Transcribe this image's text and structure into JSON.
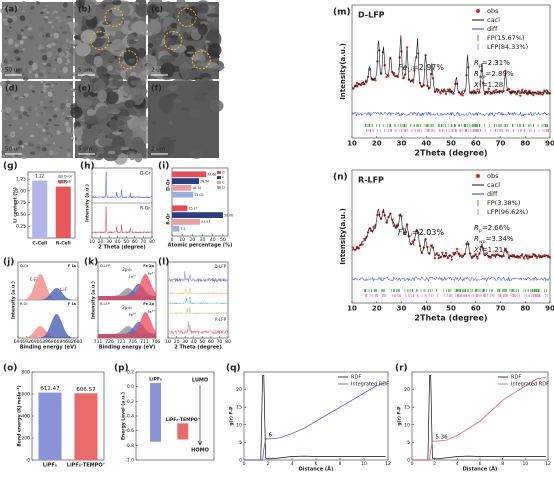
{
  "sem": [
    {
      "label": "(a)",
      "scale": "50 um"
    },
    {
      "label": "(b)",
      "scale": "5 um"
    },
    {
      "label": "(c)",
      "scale": "2 um"
    },
    {
      "label": "(d)",
      "scale": "50 um"
    },
    {
      "label": "(e)",
      "scale": "5 um"
    },
    {
      "label": "(f)",
      "scale": "2 um"
    }
  ],
  "chart_data": [
    {
      "type": "line",
      "panel": "(m)",
      "sample": "D-LFP",
      "xlabel": "2Theta (degree)",
      "ylabel": "Intensity(a.u.)",
      "xlim": [
        10,
        90
      ],
      "xticks": [
        10,
        20,
        30,
        40,
        50,
        60,
        70,
        80,
        90
      ],
      "series": [
        {
          "name": "obs",
          "color": "#d62728"
        },
        {
          "name": "cacl",
          "color": "#111111"
        },
        {
          "name": "diff",
          "color": "#1f3fd6"
        },
        {
          "name": "FP(15.67%)",
          "color": "#2ca02c"
        },
        {
          "name": "LFP(84.33%)",
          "color": "#e377c2"
        }
      ],
      "fe": {
        "main": "Fe",
        "sub": "Li",
        "rest": "=2.97%"
      },
      "stats": [
        {
          "main": "R",
          "sub": "p",
          "rest": "=2.31%"
        },
        {
          "main": "R",
          "sub": "wp",
          "rest": "=2.89%"
        },
        {
          "main": "X",
          "sup": "2",
          "rest": "=1.28"
        }
      ]
    },
    {
      "type": "line",
      "panel": "(n)",
      "sample": "R-LFP",
      "xlabel": "2Theta (degree)",
      "ylabel": "Intensity(a.u.)",
      "xlim": [
        10,
        90
      ],
      "xticks": [
        10,
        20,
        30,
        40,
        50,
        60,
        70,
        80,
        90
      ],
      "series": [
        {
          "name": "obs",
          "color": "#d62728"
        },
        {
          "name": "cacl",
          "color": "#111111"
        },
        {
          "name": "diff",
          "color": "#1f3fd6"
        },
        {
          "name": "FP(3.38%)",
          "color": "#2ca02c"
        },
        {
          "name": "LFP(96.62%)",
          "color": "#e377c2"
        }
      ],
      "fe": {
        "main": "Fe",
        "sub": "Li",
        "rest": "=2.03%"
      },
      "stats": [
        {
          "main": "R",
          "sub": "p",
          "rest": "=2.66%"
        },
        {
          "main": "R",
          "sub": "wp",
          "rest": "=3.34%"
        },
        {
          "main": "X",
          "sup": "2",
          "rest": "=1.21"
        }
      ]
    },
    {
      "type": "bar",
      "panel": "(g)",
      "ylabel": "Li content (%)",
      "categories": [
        "C-Cell",
        "R-Cell"
      ],
      "values": [
        1.22,
        1.09
      ],
      "colors": [
        "#b3b5e6",
        "#e8585a"
      ],
      "legend": [
        {
          "name": "D-Gr",
          "color": "#b3b5e6"
        },
        {
          "name": "R-Gr",
          "color": "#e8585a"
        }
      ],
      "ylim": [
        0,
        1.4
      ],
      "yticks": [
        {
          "value": 0.25,
          "label": "0.25"
        },
        {
          "value": 0.5,
          "label": "0.50"
        },
        {
          "value": 0.75,
          "label": "0.75"
        },
        {
          "value": 1,
          "label": "1.00"
        },
        {
          "value": 1.25,
          "label": "1.25"
        }
      ]
    },
    {
      "type": "line",
      "panel": "(h)",
      "xlabel": "2 Theta (degree)",
      "ylabel": "Intensity (a.u.)",
      "xlim": [
        10,
        80
      ],
      "xticks": [
        10,
        20,
        30,
        40,
        50,
        60,
        70,
        80
      ],
      "series": [
        {
          "name": "D-Gr",
          "color": "#3a53c9"
        },
        {
          "name": "R-Gr",
          "color": "#d9333f"
        }
      ]
    },
    {
      "type": "barh",
      "panel": "(i)",
      "xlabel": "Atomic percentage (%)",
      "categories": [
        "D-Gr",
        "R-Gr"
      ],
      "xlim": [
        0,
        55
      ],
      "xticks": [
        0,
        10,
        20,
        30,
        40,
        50
      ],
      "series": [
        {
          "name": "O",
          "color": "#e0505a",
          "values": [
            33.68,
            15.17
          ]
        },
        {
          "name": "F",
          "color": "#2c3e80",
          "values": [
            26.54,
            50.06
          ]
        },
        {
          "name": "C",
          "color": "#e8a0a8",
          "values": [
            18.74,
            27.57
          ]
        },
        {
          "name": "Li",
          "color": "#9ab0d8",
          "values": [
            21.03,
            7.2
          ]
        }
      ]
    },
    {
      "type": "line",
      "panel": "(j)",
      "xlabel": "Binding energy (eV)",
      "ylabel": "Intensity (a.u.)",
      "xlim": [
        694,
        680
      ],
      "xticks": [
        694,
        692,
        690,
        688,
        686,
        684,
        682,
        680
      ],
      "title": "F 1s",
      "peaks": [
        "C-F",
        "Li-F"
      ],
      "series": [
        {
          "name": "D-Gr",
          "color": "#f08a8a"
        },
        {
          "name": "R-Gr",
          "color": "#4a5fb5"
        }
      ]
    },
    {
      "type": "line",
      "panel": "(k)",
      "xlabel": "Binding energy (eV)",
      "ylabel": "Intensity (a.u.)",
      "xlim": [
        731,
        706
      ],
      "xticks": [
        731,
        726,
        721,
        716,
        711,
        706
      ],
      "title": "Fe 2p",
      "peak": "2p₃/₂",
      "ions": [
        "Fe²⁺",
        "Fe³⁺"
      ],
      "series": [
        {
          "name": "D-LFP",
          "color": "#e9485a"
        },
        {
          "name": "R-LFP",
          "color": "#4a5fb5"
        }
      ]
    },
    {
      "type": "line",
      "panel": "(l)",
      "xlabel": "2 Theta (degree)",
      "xlim": [
        10,
        80
      ],
      "xticks": [
        10,
        20,
        30,
        40,
        50,
        60,
        70,
        80
      ],
      "series": [
        {
          "name": "D-LFP",
          "color": "#6b6bd6"
        },
        {
          "name": "R-LFP",
          "color": "#e06a8a"
        }
      ]
    },
    {
      "type": "bar",
      "panel": "(o)",
      "ylabel": "Bond energy (KJ mole⁻¹)",
      "categories": [
        "LiPF₆",
        "LiPF₆·TEMPO⁺"
      ],
      "values": [
        612.47,
        606.57
      ],
      "colors": [
        "#8a93d6",
        "#e86a6a"
      ],
      "ylim": [
        0,
        800
      ],
      "yticks": [
        0,
        200,
        400,
        600,
        800
      ]
    },
    {
      "type": "range",
      "panel": "(p)",
      "ylabel": "Energy Level (a.u.)",
      "lumo_label": "LUMO",
      "homo_label": "HOMO",
      "ylim": [
        -1.0,
        0.2
      ],
      "yticks": [
        0.2,
        {
          "value": 0,
          "label": "0.0"
        },
        -0.2,
        -0.4,
        -0.6,
        -0.8,
        {
          "value": -1,
          "label": "-1.0"
        }
      ],
      "bars": [
        {
          "name": "LiPF₆",
          "color": "#8a93d6",
          "lumo": 0.05,
          "homo": -0.75
        },
        {
          "name": "LiPF₆·TEMPO⁺",
          "color": "#e86a6a",
          "lumo": -0.5,
          "homo": -0.72
        }
      ]
    },
    {
      "type": "line",
      "panel": "(q)",
      "xlabel": "Distance (Å)",
      "ylabel": "g(r) F-P",
      "annotation": "6",
      "annotation_index": 4,
      "xlim": [
        0,
        12
      ],
      "xticks": [
        0,
        2,
        4,
        6,
        8,
        10,
        12
      ],
      "ylim": [
        0,
        25
      ],
      "yticks": [
        0,
        5,
        10,
        15,
        20
      ],
      "x": [
        0,
        1.4,
        1.55,
        1.65,
        1.8,
        2.2,
        3,
        4,
        5,
        6,
        7,
        8,
        9,
        10,
        11,
        11.8
      ],
      "series": [
        {
          "name": "RDF",
          "color": "#111111",
          "values": [
            0,
            0,
            24,
            24,
            0.5,
            0.3,
            0.6,
            1,
            1.1,
            1,
            1,
            1,
            1,
            1,
            1,
            1
          ]
        },
        {
          "name": "Integrated RDF",
          "color": "#3a53c9",
          "values": [
            0,
            0,
            0,
            3,
            6,
            6,
            6.3,
            7.5,
            9,
            11,
            13,
            15,
            17,
            19,
            21,
            22
          ]
        }
      ]
    },
    {
      "type": "line",
      "panel": "(r)",
      "xlabel": "Distance (Å)",
      "ylabel": "g(r) F-P",
      "annotation": "5.36",
      "annotation_index": 4,
      "xlim": [
        0,
        12
      ],
      "xticks": [
        0,
        2,
        4,
        6,
        8,
        10,
        12
      ],
      "ylim": [
        0,
        25
      ],
      "yticks": [
        0,
        5,
        10,
        15,
        20
      ],
      "x": [
        0,
        1.4,
        1.55,
        1.65,
        1.8,
        2.2,
        3,
        4,
        5,
        6,
        7,
        8,
        9,
        10,
        11,
        11.8
      ],
      "series": [
        {
          "name": "RDF",
          "color": "#111111",
          "values": [
            0,
            0,
            24,
            24,
            0.5,
            0.3,
            0.6,
            1,
            1.1,
            1,
            1,
            1,
            1,
            1,
            1,
            1
          ]
        },
        {
          "name": "Integrated RDF",
          "color": "#e0505a",
          "values": [
            0,
            0,
            0,
            3,
            5.36,
            5.36,
            5.6,
            7,
            9,
            11,
            14,
            17,
            19,
            21,
            23,
            23.5
          ]
        }
      ]
    }
  ]
}
